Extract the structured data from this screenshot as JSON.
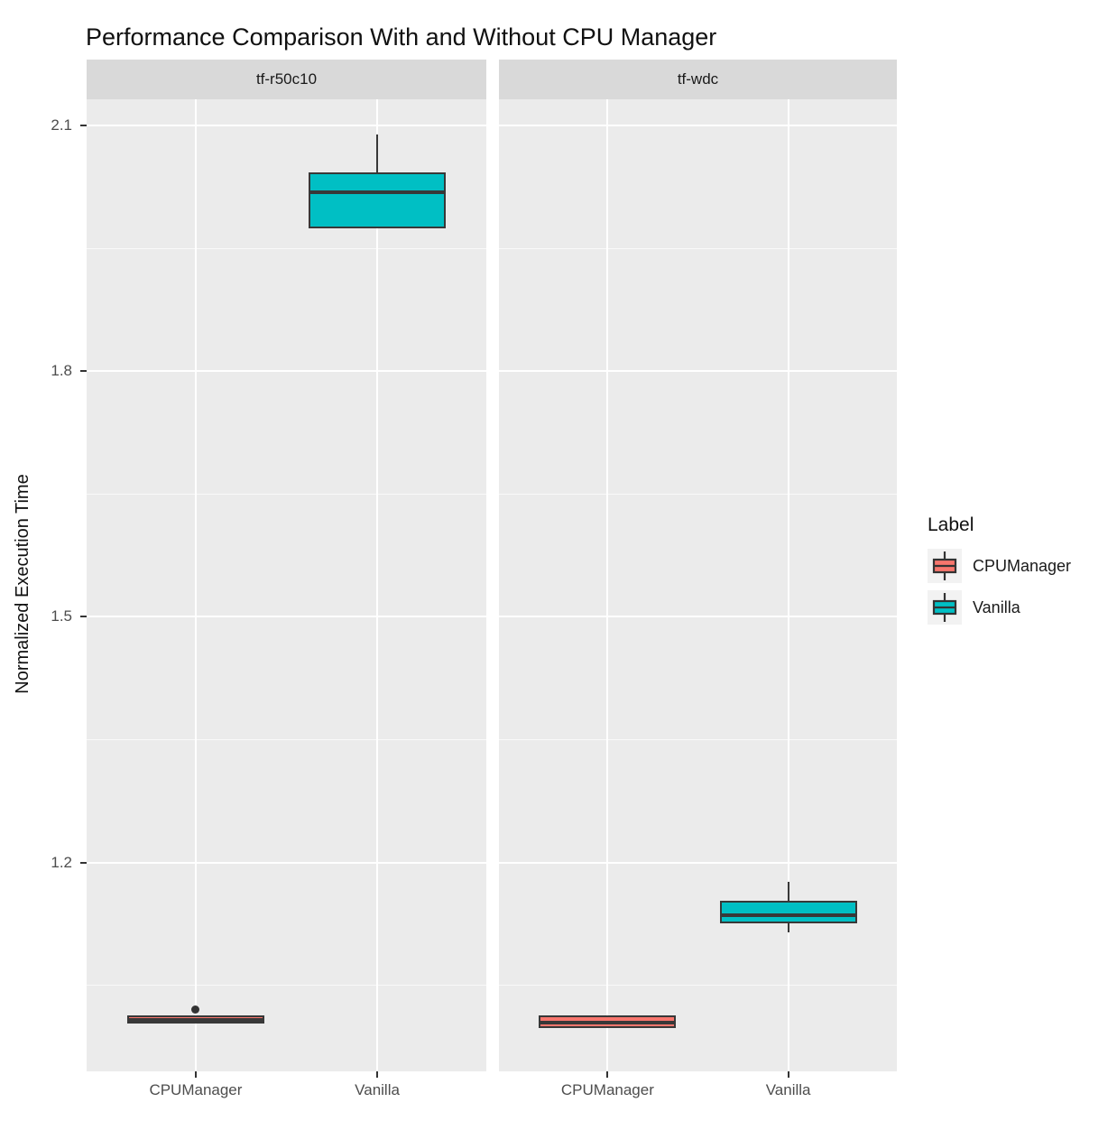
{
  "title": "Performance Comparison With and Without CPU Manager",
  "colors": {
    "series_cpumanager": "#F8766D",
    "series_vanilla": "#00BFC4",
    "box_border": "#383838",
    "panel_background": "#EBEBEB",
    "strip_background": "#D9D9D9",
    "grid_major": "#FFFFFF",
    "grid_minor": "#FFFFFF",
    "axis_text": "#4D4D4D",
    "tick_mark": "#333333",
    "legend_key_background": "#F2F2F2",
    "outlier": "#333333"
  },
  "legend": {
    "title": "Label",
    "position": "right",
    "items": [
      {
        "label": "CPUManager",
        "color": "#F8766D"
      },
      {
        "label": "Vanilla",
        "color": "#00BFC4"
      }
    ]
  },
  "chart_data": {
    "type": "boxplot",
    "title": "Performance Comparison With and Without CPU Manager",
    "xlabel": "",
    "ylabel": "Normalized Execution Time",
    "ylim": [
      0.945,
      2.132
    ],
    "y_ticks": [
      2.1,
      1.8,
      1.5,
      1.2
    ],
    "y_minor_ticks": [
      1.95,
      1.65,
      1.35,
      1.05
    ],
    "grid": true,
    "legend_position": "right",
    "facets": [
      {
        "name": "tf-r50c10",
        "categories": [
          "CPUManager",
          "Vanilla"
        ],
        "boxes": [
          {
            "category": "CPUManager",
            "series": "CPUManager",
            "whisker_low": 1.003,
            "q1": 1.003,
            "median": 1.008,
            "q3": 1.013,
            "whisker_high": 1.013,
            "outliers": [
              1.021
            ]
          },
          {
            "category": "Vanilla",
            "series": "Vanilla",
            "whisker_low": 1.974,
            "q1": 1.974,
            "median": 2.018,
            "q3": 2.043,
            "whisker_high": 2.089,
            "outliers": []
          }
        ]
      },
      {
        "name": "tf-wdc",
        "categories": [
          "CPUManager",
          "Vanilla"
        ],
        "boxes": [
          {
            "category": "CPUManager",
            "series": "CPUManager",
            "whisker_low": 0.998,
            "q1": 0.998,
            "median": 1.005,
            "q3": 1.013,
            "whisker_high": 1.013,
            "outliers": []
          },
          {
            "category": "Vanilla",
            "series": "Vanilla",
            "whisker_low": 1.115,
            "q1": 1.126,
            "median": 1.136,
            "q3": 1.153,
            "whisker_high": 1.176,
            "outliers": []
          }
        ]
      }
    ]
  }
}
